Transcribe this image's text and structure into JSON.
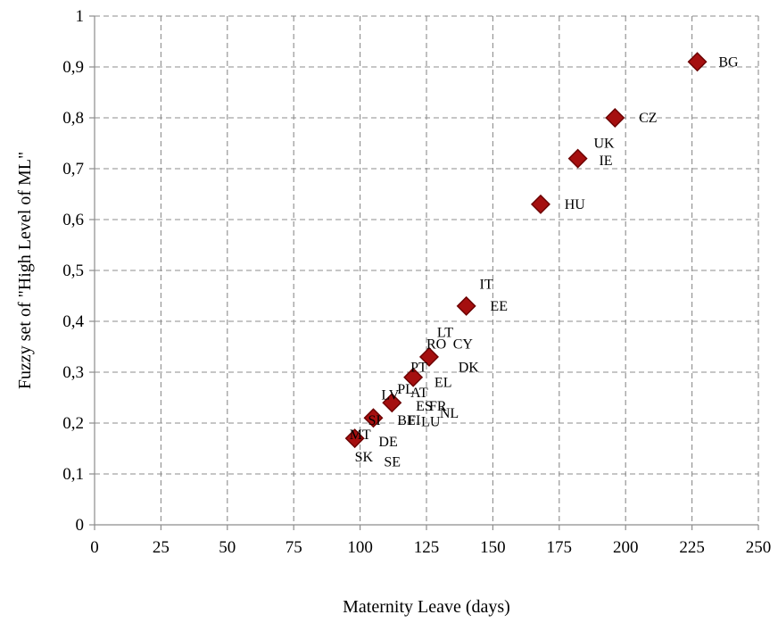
{
  "chart_data": {
    "type": "scatter",
    "title": "",
    "xlabel": "Maternity Leave (days)",
    "ylabel": "Fuzzy set of \"High Level of ML\"",
    "xlim": [
      0,
      250
    ],
    "ylim": [
      0,
      1
    ],
    "x_ticks": [
      0,
      25,
      50,
      75,
      100,
      125,
      150,
      175,
      200,
      225,
      250
    ],
    "y_ticks": [
      0,
      0.1,
      0.2,
      0.3,
      0.4,
      0.5,
      0.6,
      0.7,
      0.8,
      0.9,
      1
    ],
    "x_tick_labels": [
      "0",
      "25",
      "50",
      "75",
      "100",
      "125",
      "150",
      "175",
      "200",
      "225",
      "250"
    ],
    "y_tick_labels": [
      "0",
      "0,1",
      "0,2",
      "0,3",
      "0,4",
      "0,5",
      "0,6",
      "0,7",
      "0,8",
      "0,9",
      "1"
    ],
    "grid": true,
    "marker": "diamond",
    "marker_color": "#a50f0f",
    "points": [
      {
        "x": 98,
        "y": 0.17
      },
      {
        "x": 105,
        "y": 0.21
      },
      {
        "x": 112,
        "y": 0.24
      },
      {
        "x": 120,
        "y": 0.29
      },
      {
        "x": 126,
        "y": 0.33
      },
      {
        "x": 140,
        "y": 0.43
      },
      {
        "x": 168,
        "y": 0.63
      },
      {
        "x": 182,
        "y": 0.72
      },
      {
        "x": 196,
        "y": 0.8
      },
      {
        "x": 227,
        "y": 0.91
      }
    ],
    "labels": [
      {
        "text": "BG",
        "x": 235,
        "y": 0.91
      },
      {
        "text": "CZ",
        "x": 205,
        "y": 0.8
      },
      {
        "text": "UK",
        "x": 188,
        "y": 0.75
      },
      {
        "text": "IE",
        "x": 190,
        "y": 0.716
      },
      {
        "text": "HU",
        "x": 177,
        "y": 0.63
      },
      {
        "text": "IT",
        "x": 145,
        "y": 0.473
      },
      {
        "text": "EE",
        "x": 149,
        "y": 0.43
      },
      {
        "text": "LT",
        "x": 129,
        "y": 0.378
      },
      {
        "text": "RO",
        "x": 125,
        "y": 0.355
      },
      {
        "text": "CY",
        "x": 135,
        "y": 0.355
      },
      {
        "text": "PT",
        "x": 119,
        "y": 0.31
      },
      {
        "text": "DK",
        "x": 137,
        "y": 0.31
      },
      {
        "text": "EL",
        "x": 128,
        "y": 0.28
      },
      {
        "text": "PL",
        "x": 114,
        "y": 0.267
      },
      {
        "text": "AT",
        "x": 119,
        "y": 0.26
      },
      {
        "text": "LV",
        "x": 108,
        "y": 0.255
      },
      {
        "text": "ES",
        "x": 121,
        "y": 0.233
      },
      {
        "text": "FR",
        "x": 126,
        "y": 0.233
      },
      {
        "text": "NL",
        "x": 130,
        "y": 0.219
      },
      {
        "text": "SI",
        "x": 103,
        "y": 0.205
      },
      {
        "text": "BE",
        "x": 114,
        "y": 0.205
      },
      {
        "text": "FI",
        "x": 118,
        "y": 0.205
      },
      {
        "text": "LU",
        "x": 123,
        "y": 0.203
      },
      {
        "text": "MT",
        "x": 96,
        "y": 0.177
      },
      {
        "text": "DE",
        "x": 107,
        "y": 0.163
      },
      {
        "text": "SK",
        "x": 98,
        "y": 0.133
      },
      {
        "text": "SE",
        "x": 109,
        "y": 0.124
      }
    ]
  }
}
